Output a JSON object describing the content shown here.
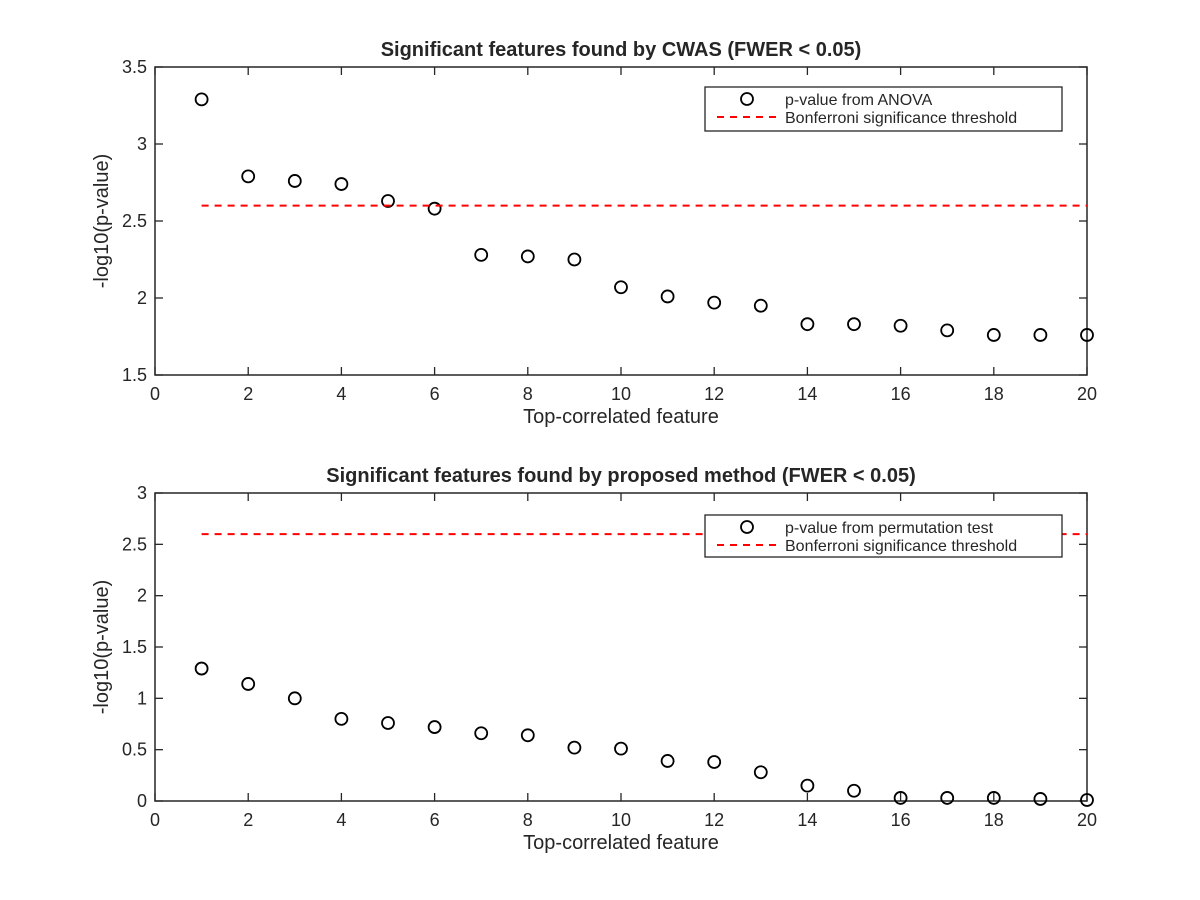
{
  "chart_data": [
    {
      "type": "scatter",
      "title": "Significant features found by CWAS (FWER < 0.05)",
      "xlabel": "Top-correlated feature",
      "ylabel": "-log10(p-value)",
      "xlim": [
        0,
        20
      ],
      "ylim": [
        1.5,
        3.5
      ],
      "xticks": [
        0,
        2,
        4,
        6,
        8,
        10,
        12,
        14,
        16,
        18,
        20
      ],
      "yticks": [
        1.5,
        2,
        2.5,
        3,
        3.5
      ],
      "ytick_labels": [
        "1.5",
        "2",
        "2.5",
        "3",
        "3.5"
      ],
      "grid": false,
      "legend_position": "top-right",
      "series": [
        {
          "name": "p-value from ANOVA",
          "marker": "circle",
          "color": "#000000",
          "x": [
            1,
            2,
            3,
            4,
            5,
            6,
            7,
            8,
            9,
            10,
            11,
            12,
            13,
            14,
            15,
            16,
            17,
            18,
            19,
            20
          ],
          "y": [
            3.29,
            2.79,
            2.76,
            2.74,
            2.63,
            2.58,
            2.28,
            2.27,
            2.25,
            2.07,
            2.01,
            1.97,
            1.95,
            1.83,
            1.83,
            1.82,
            1.79,
            1.76,
            1.76,
            1.76
          ]
        },
        {
          "name": "Bonferroni significance threshold",
          "line": "dashed",
          "color": "#ff0000",
          "x": [
            1,
            20
          ],
          "y": [
            2.6,
            2.6
          ]
        }
      ]
    },
    {
      "type": "scatter",
      "title": "Significant features found by proposed method (FWER < 0.05)",
      "xlabel": "Top-correlated feature",
      "ylabel": "-log10(p-value)",
      "xlim": [
        0,
        20
      ],
      "ylim": [
        0,
        3
      ],
      "xticks": [
        0,
        2,
        4,
        6,
        8,
        10,
        12,
        14,
        16,
        18,
        20
      ],
      "yticks": [
        0,
        0.5,
        1,
        1.5,
        2,
        2.5,
        3
      ],
      "ytick_labels": [
        "0",
        "0.5",
        "1",
        "1.5",
        "2",
        "2.5",
        "3"
      ],
      "grid": false,
      "legend_position": "top-right",
      "series": [
        {
          "name": "p-value from permutation test",
          "marker": "circle",
          "color": "#000000",
          "x": [
            1,
            2,
            3,
            4,
            5,
            6,
            7,
            8,
            9,
            10,
            11,
            12,
            13,
            14,
            15,
            16,
            17,
            18,
            19,
            20
          ],
          "y": [
            1.29,
            1.14,
            1.0,
            0.8,
            0.76,
            0.72,
            0.66,
            0.64,
            0.52,
            0.51,
            0.39,
            0.38,
            0.28,
            0.15,
            0.1,
            0.03,
            0.03,
            0.03,
            0.02,
            0.01
          ]
        },
        {
          "name": "Bonferroni significance threshold",
          "line": "dashed",
          "color": "#ff0000",
          "x": [
            1,
            20
          ],
          "y": [
            2.6,
            2.6
          ]
        }
      ]
    }
  ]
}
